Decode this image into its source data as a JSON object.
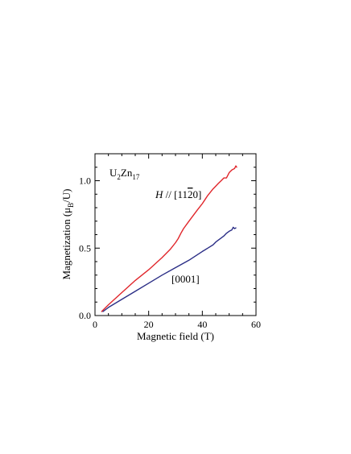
{
  "chart_data": {
    "type": "line",
    "title": "",
    "annotations": {
      "compound_base_1": "U",
      "compound_sub_1": "2",
      "compound_base_2": "Zn",
      "compound_sub_2": "17",
      "red_label_italic": "H",
      "red_label_text": " // [11",
      "red_label_bar_digit": "2",
      "red_label_end": "0]",
      "blue_label": "[0001]"
    },
    "xlabel": "Magnetic field (T)",
    "ylabel_prefix": "Magnetization (μ",
    "ylabel_sub": "B",
    "ylabel_suffix": "/U)",
    "xlim": [
      0,
      60
    ],
    "ylim": [
      0,
      1.2
    ],
    "xticks": [
      0,
      20,
      40,
      60
    ],
    "xtick_labels": [
      "0",
      "20",
      "40",
      "60"
    ],
    "yticks": [
      0,
      0.5,
      1.0
    ],
    "ytick_labels": [
      "0.0",
      "0.5",
      "1.0"
    ],
    "grid": false,
    "series": [
      {
        "color": "#e0262b",
        "x": [
          2.5,
          5,
          10,
          15,
          20,
          25,
          28,
          30,
          31,
          32,
          33,
          35,
          38,
          40,
          42,
          44,
          45,
          46,
          47,
          48,
          49,
          50,
          51,
          52,
          52.5,
          52.8
        ],
        "y": [
          0.03,
          0.08,
          0.17,
          0.26,
          0.34,
          0.43,
          0.49,
          0.54,
          0.57,
          0.61,
          0.645,
          0.7,
          0.78,
          0.83,
          0.89,
          0.94,
          0.96,
          0.98,
          1.0,
          1.02,
          1.02,
          1.06,
          1.08,
          1.09,
          1.11,
          1.1
        ]
      },
      {
        "color": "#2b2e86",
        "x": [
          3,
          5,
          10,
          15,
          20,
          25,
          30,
          35,
          40,
          42,
          44,
          45,
          46,
          47,
          48,
          49,
          50,
          51,
          51.5,
          52,
          52.5
        ],
        "y": [
          0.03,
          0.06,
          0.12,
          0.18,
          0.24,
          0.3,
          0.355,
          0.41,
          0.475,
          0.5,
          0.525,
          0.545,
          0.56,
          0.575,
          0.59,
          0.61,
          0.625,
          0.635,
          0.655,
          0.645,
          0.65
        ]
      }
    ]
  }
}
